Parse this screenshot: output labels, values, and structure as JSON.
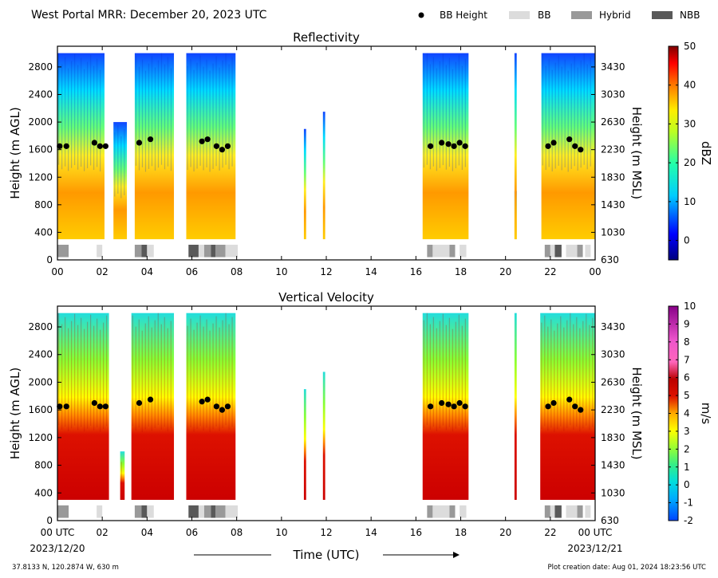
{
  "header": {
    "title": "West Portal MRR:  December 20, 2023 UTC"
  },
  "legend": {
    "items": [
      {
        "label": "BB Height",
        "kind": "marker",
        "color": "#000000"
      },
      {
        "label": "BB",
        "kind": "patch",
        "color": "#dcdcdc"
      },
      {
        "label": "Hybrid",
        "kind": "patch",
        "color": "#999999"
      },
      {
        "label": "NBB",
        "kind": "patch",
        "color": "#595959"
      }
    ]
  },
  "footer": {
    "location": "37.8133 N, 120.2874 W, 630 m",
    "created": "Plot creation date: Aug 01, 2024 18:23:56 UTC",
    "xlabel": "Time (UTC)",
    "start_date": "2023/12/20",
    "end_date": "2023/12/21"
  },
  "chart_data": [
    {
      "type": "heatmap",
      "title": "Reflectivity",
      "xlabel": "",
      "ylabel": "Height (m AGL)",
      "ylabel_right": "Height (m MSL)",
      "x_ticks": [
        "00",
        "02",
        "04",
        "06",
        "08",
        "10",
        "12",
        "14",
        "16",
        "18",
        "20",
        "22",
        "00"
      ],
      "y_ticks": [
        0,
        400,
        800,
        1200,
        1600,
        2000,
        2400,
        2800
      ],
      "y_ticks_right": [
        "630",
        "1030",
        "1430",
        "1830",
        "2230",
        "2630",
        "3030",
        "3430"
      ],
      "xlim_hours": [
        0,
        24
      ],
      "ylim": [
        0,
        3100
      ],
      "colorbar": {
        "label": "dBZ",
        "min": -5,
        "max": 50,
        "ticks": [
          0,
          10,
          20,
          30,
          40,
          50
        ]
      },
      "bb_height_points": [
        [
          0.1,
          1650
        ],
        [
          0.4,
          1650
        ],
        [
          1.65,
          1700
        ],
        [
          1.9,
          1650
        ],
        [
          2.15,
          1650
        ],
        [
          3.65,
          1700
        ],
        [
          4.15,
          1750
        ],
        [
          6.45,
          1720
        ],
        [
          6.7,
          1750
        ],
        [
          7.1,
          1650
        ],
        [
          7.35,
          1600
        ],
        [
          7.6,
          1650
        ],
        [
          16.65,
          1650
        ],
        [
          17.15,
          1700
        ],
        [
          17.45,
          1680
        ],
        [
          17.7,
          1650
        ],
        [
          17.95,
          1700
        ],
        [
          18.2,
          1650
        ],
        [
          21.9,
          1650
        ],
        [
          22.15,
          1700
        ],
        [
          22.85,
          1750
        ],
        [
          23.1,
          1650
        ],
        [
          23.35,
          1600
        ]
      ],
      "bb_type_segments": [
        {
          "start": 0.0,
          "end": 0.5,
          "class": "Hybrid"
        },
        {
          "start": 1.75,
          "end": 2.0,
          "class": "BB"
        },
        {
          "start": 3.45,
          "end": 3.75,
          "class": "Hybrid"
        },
        {
          "start": 3.75,
          "end": 4.0,
          "class": "NBB"
        },
        {
          "start": 4.0,
          "end": 4.3,
          "class": "BB"
        },
        {
          "start": 5.85,
          "end": 6.3,
          "class": "NBB"
        },
        {
          "start": 6.3,
          "end": 6.55,
          "class": "BB"
        },
        {
          "start": 6.55,
          "end": 6.85,
          "class": "Hybrid"
        },
        {
          "start": 6.85,
          "end": 7.05,
          "class": "NBB"
        },
        {
          "start": 7.05,
          "end": 7.5,
          "class": "Hybrid"
        },
        {
          "start": 7.5,
          "end": 8.05,
          "class": "BB"
        },
        {
          "start": 16.5,
          "end": 16.75,
          "class": "Hybrid"
        },
        {
          "start": 16.75,
          "end": 17.5,
          "class": "BB"
        },
        {
          "start": 17.5,
          "end": 17.75,
          "class": "Hybrid"
        },
        {
          "start": 17.95,
          "end": 18.25,
          "class": "BB"
        },
        {
          "start": 21.75,
          "end": 22.0,
          "class": "Hybrid"
        },
        {
          "start": 22.0,
          "end": 22.2,
          "class": "BB"
        },
        {
          "start": 22.2,
          "end": 22.5,
          "class": "NBB"
        },
        {
          "start": 22.7,
          "end": 23.2,
          "class": "BB"
        },
        {
          "start": 23.2,
          "end": 23.45,
          "class": "Hybrid"
        },
        {
          "start": 23.55,
          "end": 23.8,
          "class": "BB"
        }
      ],
      "echo_periods": [
        {
          "start": 0.0,
          "end": 2.1,
          "top": 3000
        },
        {
          "start": 2.5,
          "end": 3.1,
          "top": 2000
        },
        {
          "start": 3.45,
          "end": 5.2,
          "top": 3000
        },
        {
          "start": 5.75,
          "end": 7.95,
          "top": 3000
        },
        {
          "start": 11.0,
          "end": 11.1,
          "top": 1900
        },
        {
          "start": 11.85,
          "end": 11.95,
          "top": 2150
        },
        {
          "start": 16.3,
          "end": 18.35,
          "top": 3000
        },
        {
          "start": 20.4,
          "end": 20.5,
          "top": 1000
        },
        {
          "start": 20.4,
          "end": 20.5,
          "top": 3000
        },
        {
          "start": 21.6,
          "end": 24.0,
          "top": 3000
        }
      ]
    },
    {
      "type": "heatmap",
      "title": "Vertical Velocity",
      "xlabel": "Time (UTC)",
      "ylabel": "Height (m AGL)",
      "ylabel_right": "Height (m MSL)",
      "x_ticks": [
        "00 UTC",
        "02",
        "04",
        "06",
        "08",
        "10",
        "12",
        "14",
        "16",
        "18",
        "20",
        "22",
        "00 UTC"
      ],
      "y_ticks": [
        0,
        400,
        800,
        1200,
        1600,
        2000,
        2400,
        2800
      ],
      "y_ticks_right": [
        "630",
        "1030",
        "1430",
        "1830",
        "2230",
        "2630",
        "3030",
        "3430"
      ],
      "xlim_hours": [
        0,
        24
      ],
      "ylim": [
        0,
        3100
      ],
      "colorbar": {
        "label": "m/s",
        "min": -2,
        "max": 10,
        "ticks": [
          -2,
          -1,
          0,
          1,
          2,
          3,
          4,
          5,
          6,
          7,
          8,
          9,
          10
        ]
      },
      "bb_height_points": [
        [
          0.1,
          1650
        ],
        [
          0.4,
          1650
        ],
        [
          1.65,
          1700
        ],
        [
          1.9,
          1650
        ],
        [
          2.15,
          1650
        ],
        [
          3.65,
          1700
        ],
        [
          4.15,
          1750
        ],
        [
          6.45,
          1720
        ],
        [
          6.7,
          1750
        ],
        [
          7.1,
          1650
        ],
        [
          7.35,
          1600
        ],
        [
          7.6,
          1650
        ],
        [
          16.65,
          1650
        ],
        [
          17.15,
          1700
        ],
        [
          17.45,
          1680
        ],
        [
          17.7,
          1650
        ],
        [
          17.95,
          1700
        ],
        [
          18.2,
          1650
        ],
        [
          21.9,
          1650
        ],
        [
          22.15,
          1700
        ],
        [
          22.85,
          1750
        ],
        [
          23.1,
          1650
        ],
        [
          23.35,
          1600
        ]
      ],
      "bb_type_segments": "same as Reflectivity",
      "echo_periods": [
        {
          "start": 0.0,
          "end": 2.3,
          "top": 3000
        },
        {
          "start": 2.8,
          "end": 3.0,
          "top": 1000
        },
        {
          "start": 3.3,
          "end": 5.2,
          "top": 3000
        },
        {
          "start": 5.75,
          "end": 7.95,
          "top": 3000
        },
        {
          "start": 11.0,
          "end": 11.1,
          "top": 1900
        },
        {
          "start": 11.85,
          "end": 11.95,
          "top": 2150
        },
        {
          "start": 16.3,
          "end": 18.35,
          "top": 3000
        },
        {
          "start": 20.4,
          "end": 20.5,
          "top": 3000
        },
        {
          "start": 21.55,
          "end": 24.0,
          "top": 3000
        }
      ]
    }
  ]
}
